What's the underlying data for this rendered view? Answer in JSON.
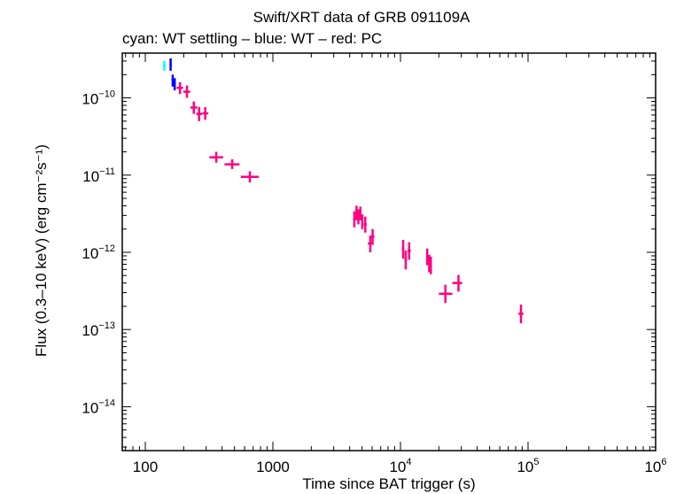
{
  "chart_data": {
    "type": "scatter",
    "title": "Swift/XRT data of GRB 091109A",
    "subtitle": "cyan: WT settling – blue: WT – red: PC",
    "xlabel": "Time since BAT trigger (s)",
    "ylabel": "Flux (0.3–10 keV) (erg cm⁻²s⁻¹)",
    "x_scale": "log",
    "y_scale": "log",
    "xlim": [
      66,
      1000000
    ],
    "ylim": [
      2.7e-15,
      3.8e-10
    ],
    "x_ticks": [
      {
        "value": 100,
        "label": "100"
      },
      {
        "value": 1000,
        "label": "1000"
      },
      {
        "value": 10000,
        "base": "10",
        "exp": "4"
      },
      {
        "value": 100000,
        "base": "10",
        "exp": "5"
      },
      {
        "value": 1000000,
        "base": "10",
        "exp": "6"
      }
    ],
    "y_ticks": [
      {
        "value": 1e-10,
        "base": "10",
        "exp": "−10"
      },
      {
        "value": 1e-11,
        "base": "10",
        "exp": "−11"
      },
      {
        "value": 1e-12,
        "base": "10",
        "exp": "−12"
      },
      {
        "value": 1e-13,
        "base": "10",
        "exp": "−13"
      },
      {
        "value": 1e-14,
        "base": "10",
        "exp": "−14"
      }
    ],
    "series": [
      {
        "color": "#00ffff",
        "points": [
          {
            "x": 141,
            "xlo": 138,
            "xhi": 144,
            "y": 2.6e-10,
            "ylo": 2.25e-10,
            "yhi": 3e-10
          }
        ]
      },
      {
        "color": "#0000ff",
        "points": [
          {
            "x": 158,
            "xlo": 155,
            "xhi": 161,
            "y": 2.7e-10,
            "ylo": 2.25e-10,
            "yhi": 3.25e-10
          },
          {
            "x": 164,
            "xlo": 161,
            "xhi": 167,
            "y": 1.7e-10,
            "ylo": 1.4e-10,
            "yhi": 2e-10
          },
          {
            "x": 170,
            "xlo": 167,
            "xhi": 173,
            "y": 1.5e-10,
            "ylo": 1.25e-10,
            "yhi": 1.8e-10
          }
        ]
      },
      {
        "color": "#ff0080",
        "points": [
          {
            "x": 187,
            "xlo": 176,
            "xhi": 198,
            "y": 1.35e-10,
            "ylo": 1.12e-10,
            "yhi": 1.6e-10
          },
          {
            "x": 212,
            "xlo": 199,
            "xhi": 225,
            "y": 1.2e-10,
            "ylo": 1e-10,
            "yhi": 1.45e-10
          },
          {
            "x": 240,
            "xlo": 226,
            "xhi": 256,
            "y": 7.5e-11,
            "ylo": 6.2e-11,
            "yhi": 9e-11
          },
          {
            "x": 264,
            "xlo": 251,
            "xhi": 279,
            "y": 6.2e-11,
            "ylo": 5e-11,
            "yhi": 7.6e-11
          },
          {
            "x": 295,
            "xlo": 280,
            "xhi": 312,
            "y": 6.3e-11,
            "ylo": 5.2e-11,
            "yhi": 7.6e-11
          },
          {
            "x": 360,
            "xlo": 318,
            "xhi": 408,
            "y": 1.7e-11,
            "ylo": 1.45e-11,
            "yhi": 2e-11
          },
          {
            "x": 480,
            "xlo": 418,
            "xhi": 548,
            "y": 1.38e-11,
            "ylo": 1.2e-11,
            "yhi": 1.6e-11
          },
          {
            "x": 660,
            "xlo": 560,
            "xhi": 775,
            "y": 9.5e-12,
            "ylo": 8e-12,
            "yhi": 1.12e-11
          },
          {
            "x": 4350,
            "xlo": 4250,
            "xhi": 4450,
            "y": 2.7e-12,
            "ylo": 2.1e-12,
            "yhi": 3.4e-12
          },
          {
            "x": 4520,
            "xlo": 4450,
            "xhi": 4590,
            "y": 3.3e-12,
            "ylo": 2.6e-12,
            "yhi": 4e-12
          },
          {
            "x": 4680,
            "xlo": 4600,
            "xhi": 4760,
            "y": 2.9e-12,
            "ylo": 2.3e-12,
            "yhi": 3.6e-12
          },
          {
            "x": 4850,
            "xlo": 4770,
            "xhi": 4930,
            "y": 3.2e-12,
            "ylo": 2.6e-12,
            "yhi": 3.9e-12
          },
          {
            "x": 5020,
            "xlo": 4940,
            "xhi": 5100,
            "y": 2.5e-12,
            "ylo": 2e-12,
            "yhi": 3.1e-12
          },
          {
            "x": 5300,
            "xlo": 5150,
            "xhi": 5450,
            "y": 2.3e-12,
            "ylo": 1.8e-12,
            "yhi": 2.9e-12
          },
          {
            "x": 5800,
            "xlo": 5550,
            "xhi": 6050,
            "y": 1.3e-12,
            "ylo": 1e-12,
            "yhi": 1.65e-12
          },
          {
            "x": 6050,
            "xlo": 5850,
            "xhi": 6250,
            "y": 1.6e-12,
            "ylo": 1.25e-12,
            "yhi": 2e-12
          },
          {
            "x": 10500,
            "xlo": 10250,
            "xhi": 10750,
            "y": 1.1e-12,
            "ylo": 8.3e-13,
            "yhi": 1.45e-12
          },
          {
            "x": 11000,
            "xlo": 10750,
            "xhi": 11250,
            "y": 8e-13,
            "ylo": 6e-13,
            "yhi": 1.05e-12
          },
          {
            "x": 11700,
            "xlo": 11350,
            "xhi": 12050,
            "y": 1.05e-12,
            "ylo": 8e-13,
            "yhi": 1.35e-12
          },
          {
            "x": 16200,
            "xlo": 15950,
            "xhi": 16450,
            "y": 8.8e-13,
            "ylo": 6.8e-13,
            "yhi": 1.12e-12
          },
          {
            "x": 16800,
            "xlo": 16550,
            "xhi": 17050,
            "y": 7.2e-13,
            "ylo": 5.5e-13,
            "yhi": 9.3e-13
          },
          {
            "x": 17300,
            "xlo": 17100,
            "xhi": 17500,
            "y": 6.8e-13,
            "ylo": 5.2e-13,
            "yhi": 8.8e-13
          },
          {
            "x": 22500,
            "xlo": 20000,
            "xhi": 25500,
            "y": 2.9e-13,
            "ylo": 2.2e-13,
            "yhi": 3.8e-13
          },
          {
            "x": 28500,
            "xlo": 25500,
            "xhi": 30500,
            "y": 4e-13,
            "ylo": 3.1e-13,
            "yhi": 5.1e-13
          },
          {
            "x": 88000,
            "xlo": 84000,
            "xhi": 92000,
            "y": 1.6e-13,
            "ylo": 1.2e-13,
            "yhi": 2.1e-13
          }
        ]
      }
    ]
  }
}
